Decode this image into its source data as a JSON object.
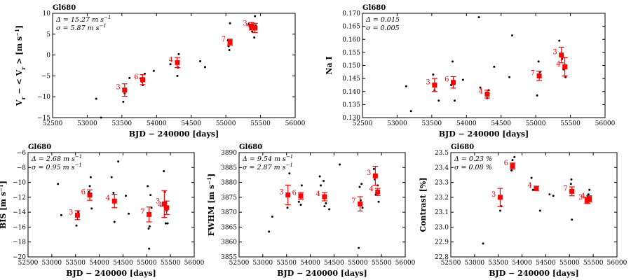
{
  "chart_data": [
    {
      "type": "scatter",
      "panel": "rv",
      "title": "Gl680",
      "xlabel": "BJD − 240000 [days]",
      "ylabel": "V_r − <V_r> [m s^-1]",
      "ylabel_parts": [
        "V",
        "r",
        " − < V",
        "r",
        " > [m s",
        "−1",
        "]"
      ],
      "xlim": [
        52500,
        56000
      ],
      "ylim": [
        -15,
        10
      ],
      "xticks": [
        52500,
        53000,
        53500,
        54000,
        54500,
        55000,
        55500,
        56000
      ],
      "yticks": [
        -15,
        -10,
        -5,
        0,
        5,
        10
      ],
      "annotations": [
        "Δ = 15.27 m s^-1",
        "σ = 5.87 m s^-1"
      ],
      "raw_points": {
        "x": [
          53130,
          53200,
          53520,
          53540,
          53610,
          53770,
          53790,
          53800,
          53830,
          53960,
          54200,
          54280,
          54300,
          54320,
          54310,
          54630,
          54700,
          55030,
          55040,
          55050,
          55060,
          55330,
          55360,
          55380,
          55410,
          55420,
          55430
        ],
        "y": [
          -10.5,
          -15,
          -11.2,
          -9.2,
          -5.5,
          -5.6,
          -6.4,
          -7.2,
          -4.5,
          -3.8,
          -2.2,
          -1.7,
          -5.0,
          0.2,
          -3.0,
          -1.5,
          -2.9,
          3.5,
          2.1,
          1.2,
          7.6,
          7.4,
          6.2,
          5.6,
          4.2,
          9.3,
          7.1
        ]
      },
      "binned": {
        "x": [
          53540,
          53800,
          54300,
          55060,
          55370,
          55420
        ],
        "y": [
          -8.4,
          -5.9,
          -1.8,
          3.1,
          6.9,
          6.5
        ],
        "err": [
          1.5,
          1.2,
          1.2,
          0.7,
          0.9,
          1.1
        ],
        "labels": [
          "3",
          "6",
          "4",
          "7",
          "3",
          "4"
        ]
      }
    },
    {
      "type": "scatter",
      "panel": "nai",
      "title": "Gl680",
      "xlabel": "BJD − 240000 [days]",
      "ylabel": "Na I",
      "xlim": [
        52500,
        56000
      ],
      "ylim": [
        0.13,
        0.17
      ],
      "xticks": [
        52500,
        53000,
        53500,
        54000,
        54500,
        55000,
        55500,
        56000
      ],
      "yticks": [
        0.13,
        0.135,
        0.14,
        0.145,
        0.15,
        0.155,
        0.16,
        0.165,
        0.17
      ],
      "ytick_labels": [
        "0.130",
        "0.135",
        "0.140",
        "0.145",
        "0.150",
        "0.155",
        "0.160",
        "0.165",
        "0.170"
      ],
      "annotations": [
        "Δ = 0.015",
        "σ = 0.005"
      ],
      "raw_points": {
        "x": [
          53130,
          53200,
          53520,
          53540,
          53600,
          53780,
          53800,
          53830,
          53950,
          54180,
          54200,
          54280,
          54300,
          54320,
          54400,
          54620,
          54660,
          55020,
          55040,
          55060,
          55340,
          55380,
          55400,
          55430
        ],
        "y": [
          0.142,
          0.1325,
          0.1465,
          0.1405,
          0.1365,
          0.1425,
          0.1515,
          0.1365,
          0.1445,
          0.1685,
          0.1415,
          0.1385,
          0.1375,
          0.1405,
          0.1495,
          0.1455,
          0.1615,
          0.1385,
          0.1515,
          0.1475,
          0.1595,
          0.1525,
          0.1485,
          0.1455
        ]
      },
      "binned": {
        "x": [
          53540,
          53810,
          54300,
          55050,
          55370,
          55420
        ],
        "y": [
          0.1425,
          0.1435,
          0.139,
          0.146,
          0.154,
          0.1495
        ],
        "err": [
          0.0025,
          0.0022,
          0.0015,
          0.0018,
          0.003,
          0.0035
        ],
        "labels": [
          "3",
          "6",
          "4",
          "7",
          "3",
          "4"
        ]
      }
    },
    {
      "type": "scatter",
      "panel": "bis",
      "title": "Gl680",
      "xlabel": "BJD − 240000 [days]",
      "ylabel": "BIS [m s^-1]",
      "ylabel_parts": [
        "BIS [m s",
        "−1",
        "]"
      ],
      "xlim": [
        52500,
        56000
      ],
      "ylim": [
        -20,
        -6
      ],
      "xticks": [
        52500,
        53000,
        53500,
        54000,
        54500,
        55000,
        55500,
        56000
      ],
      "yticks": [
        -20,
        -18,
        -16,
        -14,
        -12,
        -10,
        -8,
        -6
      ],
      "annotations": [
        "Δ = 2.68 m s^-1",
        "σ = 0.95 m s^-1"
      ],
      "raw_points": {
        "x": [
          53130,
          53200,
          53520,
          53560,
          53780,
          53800,
          53820,
          53840,
          54260,
          54300,
          54320,
          54400,
          54560,
          54620,
          55020,
          55040,
          55050,
          55060,
          55080,
          55100,
          55360,
          55380,
          55400,
          55420,
          55440
        ],
        "y": [
          -10.2,
          -14.4,
          -15.8,
          -14.0,
          -11.3,
          -10.5,
          -9.3,
          -13.5,
          -9.3,
          -11.4,
          -15.3,
          -7.2,
          -11.8,
          -14.2,
          -10.5,
          -16.2,
          -18.9,
          -15.9,
          -11.7,
          -13.4,
          -8.5,
          -11.3,
          -15.5,
          -13.8,
          -15.5
        ]
      },
      "binned": {
        "x": [
          53540,
          53800,
          54320,
          55050,
          55370,
          55420
        ],
        "y": [
          -14.4,
          -11.7,
          -12.5,
          -14.3,
          -12.9,
          -13.4
        ],
        "err": [
          0.6,
          0.7,
          0.9,
          1.0,
          1.8,
          0.9
        ],
        "labels": [
          "3",
          "6",
          "4",
          "7",
          "3",
          "4"
        ]
      }
    },
    {
      "type": "scatter",
      "panel": "fwhm",
      "title": "Gl680",
      "xlabel": "BJD − 240000 [days]",
      "ylabel": "FWHM [m s^-1]",
      "ylabel_parts": [
        "FWHM [m s",
        "−1",
        "]"
      ],
      "xlim": [
        52500,
        56000
      ],
      "ylim": [
        3855,
        3890
      ],
      "xticks": [
        52500,
        53000,
        53500,
        54000,
        54500,
        55000,
        55500,
        56000
      ],
      "yticks": [
        3855,
        3860,
        3865,
        3870,
        3875,
        3880,
        3885,
        3890
      ],
      "annotations": [
        "Δ = 9.54 m s^-1",
        "σ = 2.87 m s^-1"
      ],
      "raw_points": {
        "x": [
          53130,
          53200,
          53520,
          53560,
          53760,
          53800,
          53820,
          54200,
          54220,
          54280,
          54300,
          54330,
          54400,
          54620,
          55020,
          55040,
          55060,
          55080,
          55100,
          55340,
          55360,
          55380,
          55420,
          55440
        ],
        "y": [
          3863.5,
          3868.5,
          3871.5,
          3883,
          3873.5,
          3872.5,
          3879,
          3882,
          3879,
          3880.5,
          3872,
          3873,
          3871,
          3886,
          3858,
          3878.5,
          3874,
          3879.5,
          3871.5,
          3884.5,
          3881,
          3876,
          3879,
          3873.5
        ]
      },
      "binned": {
        "x": [
          53530,
          53800,
          54300,
          55050,
          55370,
          55420
        ],
        "y": [
          3875.8,
          3875.5,
          3875.2,
          3872.8,
          3882.2,
          3876.8
        ],
        "err": [
          3.3,
          1.1,
          1.4,
          2.4,
          3.2,
          1.2
        ],
        "labels": [
          "3",
          "6",
          "4",
          "7",
          "3",
          "4"
        ]
      }
    },
    {
      "type": "scatter",
      "panel": "contrast",
      "title": "Gl680",
      "xlabel": "BJD − 240000 [days]",
      "ylabel": "Contrast [%]",
      "xlim": [
        52500,
        56000
      ],
      "ylim": [
        22.8,
        23.5
      ],
      "xticks": [
        52500,
        53000,
        53500,
        54000,
        54500,
        55000,
        55500,
        56000
      ],
      "yticks": [
        22.8,
        22.9,
        23.0,
        23.1,
        23.2,
        23.3,
        23.4,
        23.5
      ],
      "ytick_labels": [
        "22.8",
        "22.9",
        "23.0",
        "23.1",
        "23.2",
        "23.3",
        "23.4",
        "23.5"
      ],
      "annotations": [
        "Δ = 0.23 %",
        "σ = 0.08 %"
      ],
      "raw_points": {
        "x": [
          53180,
          53540,
          53560,
          53780,
          53800,
          53820,
          53840,
          54200,
          54230,
          54320,
          54380,
          54580,
          54660,
          55030,
          55040,
          55050,
          55060,
          55340,
          55360,
          55380,
          55400,
          55420
        ],
        "y": [
          22.89,
          23.11,
          23.14,
          23.38,
          23.45,
          23.42,
          23.47,
          23.33,
          23.25,
          23.27,
          23.11,
          23.22,
          23.21,
          23.29,
          23.32,
          23.05,
          23.25,
          23.19,
          23.18,
          23.21,
          23.22,
          23.25
        ]
      },
      "binned": {
        "x": [
          53540,
          53800,
          54300,
          55050,
          55370,
          55420
        ],
        "y": [
          23.2,
          23.41,
          23.26,
          23.24,
          23.18,
          23.19
        ],
        "err": [
          0.06,
          0.02,
          0.015,
          0.03,
          0.02,
          0.02
        ],
        "labels": [
          "3",
          "6",
          "4",
          "7",
          "3",
          "4"
        ]
      }
    }
  ]
}
